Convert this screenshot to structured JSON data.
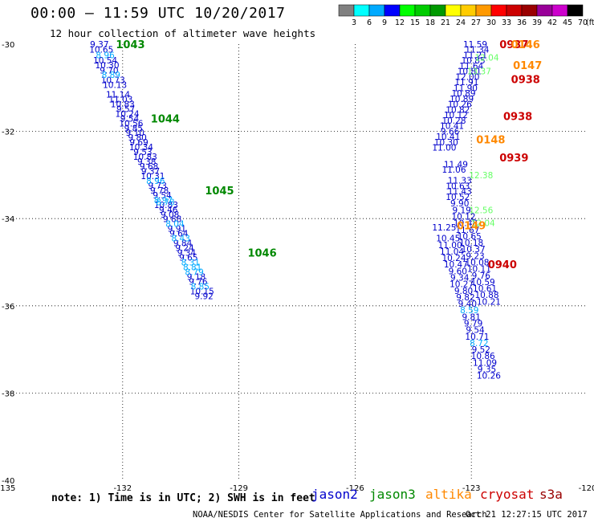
{
  "header": {
    "title": "00:00 – 11:59 UTC 10/20/2017",
    "subtitle": "12 hour collection of altimeter wave heights",
    "unit_label": "(ft)"
  },
  "color_scale": {
    "labels": [
      "3",
      "6",
      "9",
      "12",
      "15",
      "18",
      "21",
      "24",
      "27",
      "30",
      "33",
      "36",
      "39",
      "42",
      "45",
      "70"
    ],
    "colors": [
      "#808080",
      "#00ffff",
      "#00aaff",
      "#0000ff",
      "#00ff00",
      "#00cc00",
      "#009900",
      "#ffff00",
      "#ffcc00",
      "#ff9900",
      "#ff0000",
      "#cc0000",
      "#990000",
      "#990099",
      "#cc00cc",
      "#000000"
    ]
  },
  "chart_data": {
    "type": "scatter",
    "title": "00:00 – 11:59 UTC 10/20/2017",
    "subtitle": "12 hour collection of altimeter wave heights",
    "xlim": [
      -135,
      -120
    ],
    "ylim": [
      -40,
      -30
    ],
    "x_ticks": [
      -135,
      -132,
      -129,
      -126,
      -123,
      -120
    ],
    "y_ticks": [
      -30,
      -32,
      -34,
      -36,
      -38,
      -40
    ],
    "grid": "dotted",
    "series": [
      {
        "name": "jason2",
        "color": "#0000cc",
        "points": [
          [
            -132.6,
            -30.0,
            "9.37"
          ],
          [
            -132.55,
            -30.12,
            "10.65"
          ],
          [
            -132.45,
            -30.37,
            "10.54"
          ],
          [
            -132.4,
            -30.48,
            "10.30"
          ],
          [
            -132.35,
            -30.6,
            "9.70"
          ],
          [
            -132.25,
            -30.82,
            "10.73"
          ],
          [
            -132.2,
            -30.93,
            "10.13"
          ],
          [
            -132.12,
            -31.15,
            "11.14"
          ],
          [
            -132.05,
            -31.26,
            "11.03"
          ],
          [
            -132.0,
            -31.37,
            "10.83"
          ],
          [
            -131.92,
            -31.48,
            "9.57"
          ],
          [
            -131.88,
            -31.59,
            "10.24"
          ],
          [
            -131.82,
            -31.7,
            "9.54"
          ],
          [
            -131.78,
            -31.81,
            "10.56"
          ],
          [
            -131.72,
            -31.92,
            "9.85"
          ],
          [
            -131.68,
            -32.03,
            "9.10"
          ],
          [
            -131.62,
            -32.14,
            "9.80"
          ],
          [
            -131.58,
            -32.25,
            "9.69"
          ],
          [
            -131.52,
            -32.36,
            "10.34"
          ],
          [
            -131.48,
            -32.47,
            "9.53"
          ],
          [
            -131.42,
            -32.58,
            "10.83"
          ],
          [
            -131.38,
            -32.69,
            "9.38"
          ],
          [
            -131.32,
            -32.8,
            "9.68"
          ],
          [
            -131.28,
            -32.91,
            "9.37"
          ],
          [
            -131.22,
            -33.02,
            "10.31"
          ],
          [
            -131.1,
            -33.24,
            "9.73"
          ],
          [
            -131.05,
            -33.35,
            "9.78"
          ],
          [
            -130.98,
            -33.46,
            "9.54"
          ],
          [
            -130.88,
            -33.68,
            "10.83"
          ],
          [
            -130.82,
            -33.79,
            "9.46"
          ],
          [
            -130.78,
            -33.9,
            "9.08"
          ],
          [
            -130.72,
            -34.01,
            "9.68"
          ],
          [
            -130.6,
            -34.23,
            "9.91"
          ],
          [
            -130.55,
            -34.34,
            "9.64"
          ],
          [
            -130.45,
            -34.56,
            "9.84"
          ],
          [
            -130.4,
            -34.67,
            "9.24"
          ],
          [
            -130.35,
            -34.78,
            "9.34"
          ],
          [
            -130.3,
            -34.89,
            "9.65"
          ],
          [
            -130.1,
            -35.33,
            "9.18"
          ],
          [
            -130.05,
            -35.44,
            "9.76"
          ],
          [
            -129.95,
            -35.66,
            "10.15"
          ],
          [
            -129.9,
            -35.77,
            "9.92"
          ]
        ]
      },
      {
        "name": "jason2-track2",
        "color": "#0000cc",
        "points": [
          [
            -123.7,
            -34.2,
            "11.25"
          ],
          [
            -123.6,
            -34.45,
            "10.45"
          ],
          [
            -123.55,
            -34.6,
            "11.00"
          ],
          [
            -123.5,
            -34.75,
            "11.04"
          ],
          [
            -123.45,
            -34.9,
            "10.24"
          ],
          [
            -123.4,
            -35.05,
            "10.47"
          ],
          [
            -123.35,
            -35.2,
            "9.60"
          ],
          [
            -123.3,
            -35.35,
            "9.34"
          ],
          [
            -123.25,
            -35.5,
            "10.27"
          ],
          [
            -123.2,
            -35.65,
            "9.80"
          ],
          [
            -123.15,
            -35.8,
            "9.82"
          ],
          [
            -123.1,
            -35.95,
            "9.40"
          ],
          [
            -123.0,
            -36.25,
            "9.81"
          ],
          [
            -122.95,
            -36.4,
            "9.79"
          ],
          [
            -122.9,
            -36.55,
            "9.54"
          ],
          [
            -122.85,
            -36.7,
            "10.71"
          ],
          [
            -122.75,
            -37.0,
            "9.52"
          ],
          [
            -122.7,
            -37.15,
            "10.86"
          ],
          [
            -122.65,
            -37.3,
            "11.09"
          ],
          [
            -122.6,
            -37.45,
            "9.35"
          ],
          [
            -122.55,
            -37.6,
            "10.26"
          ]
        ]
      },
      {
        "name": "jason2-track3",
        "color": "#0000cc",
        "points": [
          [
            -122.9,
            -30.0,
            "11.59"
          ],
          [
            -122.85,
            -30.12,
            "11.34"
          ],
          [
            -122.9,
            -30.25,
            "11.21"
          ],
          [
            -122.95,
            -30.37,
            "10.85"
          ],
          [
            -123.0,
            -30.5,
            "11.64"
          ],
          [
            -123.05,
            -30.62,
            "10.81"
          ],
          [
            -123.1,
            -30.75,
            "12.00"
          ],
          [
            -123.12,
            -30.87,
            "11.91"
          ],
          [
            -123.15,
            -31.0,
            "11.90"
          ],
          [
            -123.2,
            -31.12,
            "10.89"
          ],
          [
            -123.25,
            -31.25,
            "10.89"
          ],
          [
            -123.3,
            -31.37,
            "10.26"
          ],
          [
            -123.35,
            -31.5,
            "10.82"
          ],
          [
            -123.4,
            -31.62,
            "10.12"
          ],
          [
            -123.45,
            -31.75,
            "10.28"
          ],
          [
            -123.5,
            -31.87,
            "10.41"
          ],
          [
            -123.55,
            -32.0,
            "9.66"
          ],
          [
            -123.6,
            -32.12,
            "10.41"
          ],
          [
            -123.65,
            -32.25,
            "10.30"
          ],
          [
            -123.7,
            -32.37,
            "11.00"
          ],
          [
            -123.4,
            -32.75,
            "11.49"
          ],
          [
            -123.45,
            -32.87,
            "11.06"
          ],
          [
            -123.3,
            -33.12,
            "11.33"
          ],
          [
            -123.35,
            -33.25,
            "10.63"
          ],
          [
            -123.3,
            -33.37,
            "11.43"
          ],
          [
            -123.35,
            -33.5,
            "10.52"
          ],
          [
            -123.3,
            -33.65,
            "9.90"
          ],
          [
            -123.25,
            -33.8,
            "9.19"
          ],
          [
            -123.2,
            -33.95,
            "10.12"
          ],
          [
            -123.15,
            -34.1,
            "10.48"
          ],
          [
            -123.1,
            -34.25,
            "11.67"
          ],
          [
            -123.05,
            -34.4,
            "10.65"
          ],
          [
            -123.0,
            -34.55,
            "10.18"
          ],
          [
            -122.95,
            -34.7,
            "10.37"
          ],
          [
            -122.9,
            -34.85,
            "9.23"
          ],
          [
            -122.85,
            -35.0,
            "10.08"
          ],
          [
            -122.8,
            -35.15,
            "10.11"
          ],
          [
            -122.75,
            -35.3,
            "9.76"
          ],
          [
            -122.7,
            -35.45,
            "10.59"
          ],
          [
            -122.65,
            -35.6,
            "10.61"
          ],
          [
            -122.6,
            -35.75,
            "10.88"
          ],
          [
            -122.55,
            -35.9,
            "10.21"
          ]
        ]
      },
      {
        "name": "jason3",
        "color": "#00aaff",
        "points": [
          [
            -132.45,
            -30.25,
            "8.96"
          ],
          [
            -132.3,
            -30.7,
            "8.89"
          ],
          [
            -131.15,
            -33.13,
            "8.96"
          ],
          [
            -130.95,
            -33.57,
            "8.97"
          ],
          [
            -130.9,
            -33.62,
            "8.78"
          ],
          [
            -130.65,
            -34.12,
            "8.04"
          ],
          [
            -130.5,
            -34.45,
            "8.43"
          ],
          [
            -130.25,
            -35.0,
            "8.31"
          ],
          [
            -130.2,
            -35.11,
            "8.81"
          ],
          [
            -130.15,
            -35.22,
            "8.79"
          ],
          [
            -130.0,
            -35.55,
            "8.85"
          ],
          [
            -123.05,
            -36.1,
            "8.59"
          ],
          [
            -122.8,
            -36.85,
            "8.72"
          ]
        ]
      },
      {
        "name": "altika",
        "color": "#66ff66",
        "points": [
          [
            -122.7,
            -34.1,
            "12.04"
          ],
          [
            -122.75,
            -33.0,
            "12.38"
          ],
          [
            -122.75,
            -33.8,
            "12.56"
          ],
          [
            -122.8,
            -30.62,
            "13.37"
          ],
          [
            -122.6,
            -30.3,
            "12.04"
          ]
        ]
      }
    ],
    "time_labels": [
      {
        "text": "1043",
        "color": "#008800",
        "lon": -131.8,
        "lat": -30.0
      },
      {
        "text": "1044",
        "color": "#008800",
        "lon": -130.9,
        "lat": -31.7
      },
      {
        "text": "1045",
        "color": "#008800",
        "lon": -129.5,
        "lat": -33.35
      },
      {
        "text": "1046",
        "color": "#008800",
        "lon": -128.4,
        "lat": -34.78
      },
      {
        "text": "0937",
        "color": "#cc0000",
        "lon": -121.9,
        "lat": -30.0
      },
      {
        "text": "0938",
        "color": "#cc0000",
        "lon": -121.6,
        "lat": -30.8
      },
      {
        "text": "0938",
        "color": "#cc0000",
        "lon": -121.8,
        "lat": -31.65
      },
      {
        "text": "0939",
        "color": "#cc0000",
        "lon": -121.9,
        "lat": -32.6
      },
      {
        "text": "0940",
        "color": "#cc0000",
        "lon": -122.2,
        "lat": -35.05
      },
      {
        "text": "0146",
        "color": "#ff8800",
        "lon": -121.6,
        "lat": -30.0
      },
      {
        "text": "0147",
        "color": "#ff8800",
        "lon": -121.55,
        "lat": -30.48
      },
      {
        "text": "0148",
        "color": "#ff8800",
        "lon": -122.5,
        "lat": -32.18
      },
      {
        "text": "0149",
        "color": "#ff8800",
        "lon": -123.0,
        "lat": -34.15
      }
    ]
  },
  "axis": {
    "x_tick_labels": [
      "-135",
      "-132",
      "-129",
      "-126",
      "-123",
      "-120"
    ],
    "y_tick_labels": [
      "-30",
      "-32",
      "-34",
      "-36",
      "-38",
      "-40"
    ]
  },
  "legend": {
    "note": "note: 1) Time is in UTC; 2) SWH is in feet",
    "satellites": [
      {
        "name": "jason2",
        "color": "#0000cc"
      },
      {
        "name": "jason3",
        "color": "#008800"
      },
      {
        "name": "altika",
        "color": "#ff8800"
      },
      {
        "name": "cryosat",
        "color": "#cc0000"
      },
      {
        "name": "s3a",
        "color": "#990000"
      }
    ]
  },
  "footer": {
    "left": "NOAA/NESDIS Center for Satellite Applications and Research",
    "right": "Oct 21 12:27:15 UTC 2017"
  }
}
